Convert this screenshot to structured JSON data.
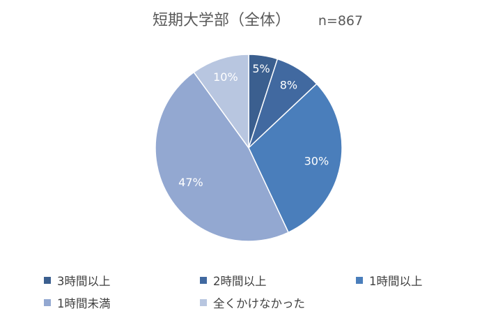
{
  "chart_data": {
    "type": "pie",
    "title": "短期大学部（全体）",
    "subtitle": "n=867",
    "slices": [
      {
        "label": "3時間以上",
        "value": 5,
        "data_label": "5%",
        "color": "#3b5f8f"
      },
      {
        "label": "2時間以上",
        "value": 8,
        "data_label": "8%",
        "color": "#4169a0"
      },
      {
        "label": "1時間以上",
        "value": 30,
        "data_label": "30%",
        "color": "#4a7ebb"
      },
      {
        "label": "1時間未満",
        "value": 47,
        "data_label": "47%",
        "color": "#93a8d1"
      },
      {
        "label": "全くかけなかった",
        "value": 10,
        "data_label": "10%",
        "color": "#b8c6e0"
      }
    ],
    "legend_position": "bottom"
  }
}
